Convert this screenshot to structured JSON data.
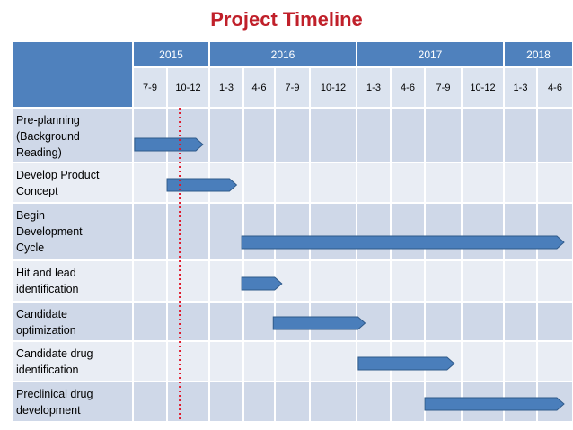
{
  "title": "Project Timeline",
  "years": [
    {
      "label": "2015",
      "span": 2
    },
    {
      "label": "2016",
      "span": 4
    },
    {
      "label": "2017",
      "span": 4
    },
    {
      "label": "2018",
      "span": 2
    }
  ],
  "quarters": [
    "7-9",
    "10-12",
    "1-3",
    "4-6",
    "7-9",
    "10-12",
    "1-3",
    "4-6",
    "7-9",
    "10-12",
    "1-3",
    "4-6"
  ],
  "tasks": [
    {
      "label": "Pre-planning (Background Reading)",
      "lines": [
        "Pre-planning",
        "(Background",
        "Reading)"
      ],
      "start": 0.05,
      "end": 1.85
    },
    {
      "label": "Develop Product Concept",
      "lines": [
        "Develop Product",
        "Concept"
      ],
      "start": 1.0,
      "end": 2.8
    },
    {
      "label": "Begin Development Cycle",
      "lines": [
        "Begin",
        "Development",
        "Cycle"
      ],
      "start": 2.95,
      "end": 11.75
    },
    {
      "label": "Hit and lead identification",
      "lines": [
        "Hit and lead",
        "identification"
      ],
      "start": 2.95,
      "end": 4.2
    },
    {
      "label": "Candidate optimization",
      "lines": [
        "Candidate",
        "optimization"
      ],
      "start": 3.95,
      "end": 6.25
    },
    {
      "label": "Candidate drug identification",
      "lines": [
        "Candidate drug",
        "identification"
      ],
      "start": 6.05,
      "end": 8.8
    },
    {
      "label": "Preclinical drug development",
      "lines": [
        "Preclinical drug",
        "development"
      ],
      "start": 8.0,
      "end": 11.75
    }
  ],
  "today_marker": 1.3,
  "colors": {
    "title": "#c0202a",
    "header": "#4f81bd",
    "bar_fill": "#4a7ebb",
    "bar_stroke": "#2f5a8a",
    "marker": "#e0182a"
  }
}
